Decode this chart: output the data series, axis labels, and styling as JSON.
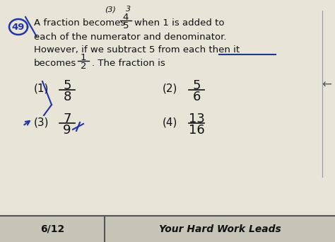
{
  "bg_color": "#e8e4d8",
  "text_color": "#111111",
  "footer_bg": "#c8c4b8",
  "footer_divider": "#555555",
  "blue_pen": "#2233aa",
  "underline_color": "#1a3a8a",
  "question_num": "49",
  "top_text1": "(3)",
  "top_text2": "3",
  "line1_pre": "A fraction becomes",
  "frac1_num": "4",
  "frac1_den": "5",
  "line1_post": "when 1 is added to",
  "line2": "each of the numerator and denominator.",
  "line3": "However, if we subtract 5 from each then it",
  "line4_pre": "becomes",
  "frac2_num": "1",
  "frac2_den": "2",
  "line4_post": ". The fraction is",
  "opt1_label": "(1)",
  "opt1_num": "5",
  "opt1_den": "8",
  "opt2_label": "(2)",
  "opt2_num": "5",
  "opt2_den": "6",
  "opt3_label": "(3)",
  "opt3_num": "7",
  "opt3_den": "9",
  "opt4_label": "(4)",
  "opt4_num": "13",
  "opt4_den": "16",
  "footer_left": "6/12",
  "footer_right": "Your Hard Work Leads"
}
